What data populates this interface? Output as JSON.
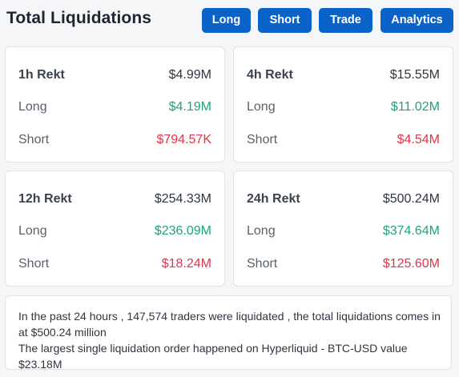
{
  "header": {
    "title": "Total Liquidations",
    "buttons": [
      "Long",
      "Short",
      "Trade",
      "Analytics"
    ]
  },
  "cards": [
    {
      "period": "1h Rekt",
      "total": "$4.99M",
      "long_label": "Long",
      "long": "$4.19M",
      "short_label": "Short",
      "short": "$794.57K"
    },
    {
      "period": "4h Rekt",
      "total": "$15.55M",
      "long_label": "Long",
      "long": "$11.02M",
      "short_label": "Short",
      "short": "$4.54M"
    },
    {
      "period": "12h Rekt",
      "total": "$254.33M",
      "long_label": "Long",
      "long": "$236.09M",
      "short_label": "Short",
      "short": "$18.24M"
    },
    {
      "period": "24h Rekt",
      "total": "$500.24M",
      "long_label": "Long",
      "long": "$374.64M",
      "short_label": "Short",
      "short": "$125.60M"
    }
  ],
  "summary": {
    "line1": "In the past 24 hours , 147,574 traders were liquidated , the total liquidations comes in at $500.24 million",
    "line2": "The largest single liquidation order happened on Hyperliquid - BTC-USD value $23.18M"
  },
  "colors": {
    "accent": "#0a63c9",
    "long": "#1fa37a",
    "short": "#e2344a"
  }
}
